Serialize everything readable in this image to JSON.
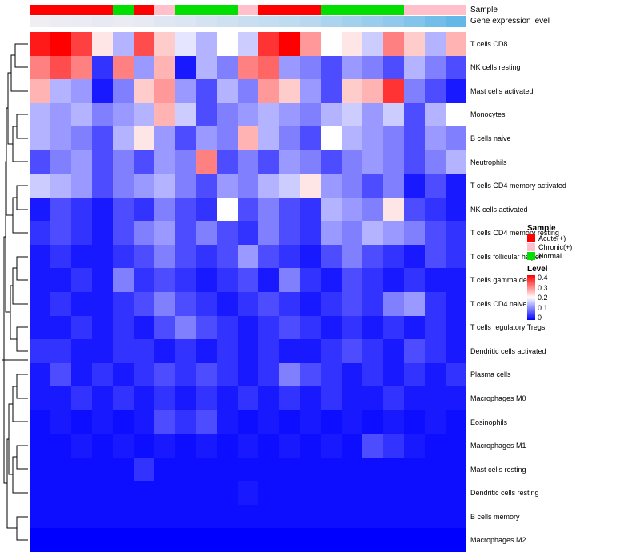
{
  "annotations": {
    "sample_label": "Sample",
    "expression_label": "Gene expression level",
    "sample_colors": {
      "Acute(+)": "#FF0000",
      "Chronic(+)": "#FFC0CB",
      "Normal": "#00E000"
    },
    "column_groups": [
      "Acute(+)",
      "Acute(+)",
      "Acute(+)",
      "Acute(+)",
      "Normal",
      "Acute(+)",
      "Chronic(+)",
      "Normal",
      "Normal",
      "Normal",
      "Chronic(+)",
      "Acute(+)",
      "Acute(+)",
      "Acute(+)",
      "Normal",
      "Normal",
      "Normal",
      "Normal",
      "Chronic(+)",
      "Chronic(+)",
      "Chronic(+)"
    ],
    "expression_values": [
      0.05,
      0.07,
      0.09,
      0.11,
      0.08,
      0.1,
      0.15,
      0.18,
      0.22,
      0.26,
      0.3,
      0.33,
      0.36,
      0.4,
      0.48,
      0.54,
      0.6,
      0.66,
      0.75,
      0.85,
      0.95
    ],
    "expression_scale": {
      "low": "#F8F0F4",
      "high": "#5BB5E7"
    }
  },
  "legend": {
    "sample_title": "Sample",
    "sample_items": [
      {
        "label": "Acute(+)",
        "color": "#FF0000"
      },
      {
        "label": "Chronic(+)",
        "color": "#FFC0CB"
      },
      {
        "label": "Normal",
        "color": "#00E000"
      }
    ],
    "level_title": "Level",
    "level_ticks": [
      "0.4",
      "0.3",
      "0.2",
      "0.1",
      "0"
    ]
  },
  "chart_data": {
    "type": "heatmap",
    "title": "",
    "columns": 21,
    "rows": [
      "T cells CD8",
      "NK cells resting",
      "Mast cells activated",
      "Monocytes",
      "B cells naive",
      "Neutrophils",
      "T cells CD4 memory activated",
      "NK cells activated",
      "T cells CD4 memory resting",
      "T cells follicular helper",
      "T cells gamma delta",
      "T cells CD4 naive",
      "T cells regulatory  Tregs",
      "Dendritic cells activated",
      "Plasma cells",
      "Macrophages M0",
      "Eosinophils",
      "Macrophages M1",
      "Mast cells resting",
      "Dendritic cells resting",
      "B cells memory",
      "Macrophages M2"
    ],
    "values": [
      [
        0.38,
        0.4,
        0.35,
        0.22,
        0.14,
        0.34,
        0.24,
        0.18,
        0.14,
        0.2,
        0.16,
        0.36,
        0.4,
        0.28,
        0.2,
        0.22,
        0.16,
        0.3,
        0.24,
        0.14,
        0.26
      ],
      [
        0.3,
        0.34,
        0.3,
        0.04,
        0.3,
        0.12,
        0.26,
        0.02,
        0.14,
        0.1,
        0.3,
        0.32,
        0.12,
        0.1,
        0.06,
        0.12,
        0.1,
        0.06,
        0.14,
        0.1,
        0.06
      ],
      [
        0.26,
        0.14,
        0.12,
        0.02,
        0.1,
        0.24,
        0.28,
        0.12,
        0.06,
        0.14,
        0.1,
        0.28,
        0.24,
        0.12,
        0.06,
        0.24,
        0.26,
        0.36,
        0.1,
        0.06,
        0.02
      ],
      [
        0.14,
        0.12,
        0.14,
        0.1,
        0.12,
        0.14,
        0.26,
        0.16,
        0.06,
        0.1,
        0.12,
        0.14,
        0.12,
        0.1,
        0.14,
        0.16,
        0.12,
        0.16,
        0.06,
        0.14,
        0.2
      ],
      [
        0.14,
        0.12,
        0.1,
        0.06,
        0.14,
        0.22,
        0.12,
        0.06,
        0.12,
        0.1,
        0.26,
        0.14,
        0.1,
        0.06,
        0.2,
        0.14,
        0.12,
        0.1,
        0.06,
        0.12,
        0.1
      ],
      [
        0.06,
        0.1,
        0.12,
        0.06,
        0.1,
        0.06,
        0.12,
        0.1,
        0.3,
        0.06,
        0.1,
        0.06,
        0.12,
        0.1,
        0.06,
        0.1,
        0.12,
        0.1,
        0.06,
        0.1,
        0.14
      ],
      [
        0.16,
        0.14,
        0.12,
        0.06,
        0.1,
        0.12,
        0.14,
        0.1,
        0.06,
        0.12,
        0.1,
        0.14,
        0.16,
        0.22,
        0.12,
        0.1,
        0.06,
        0.1,
        0.02,
        0.06,
        0.02
      ],
      [
        0.02,
        0.06,
        0.04,
        0.02,
        0.06,
        0.04,
        0.1,
        0.06,
        0.04,
        0.2,
        0.06,
        0.1,
        0.06,
        0.04,
        0.14,
        0.12,
        0.1,
        0.22,
        0.06,
        0.04,
        0.02
      ],
      [
        0.04,
        0.06,
        0.04,
        0.02,
        0.06,
        0.1,
        0.12,
        0.06,
        0.1,
        0.06,
        0.04,
        0.1,
        0.06,
        0.04,
        0.12,
        0.1,
        0.14,
        0.12,
        0.1,
        0.06,
        0.04
      ],
      [
        0.02,
        0.04,
        0.02,
        0.02,
        0.04,
        0.06,
        0.1,
        0.06,
        0.04,
        0.06,
        0.12,
        0.06,
        0.04,
        0.02,
        0.06,
        0.1,
        0.06,
        0.04,
        0.02,
        0.06,
        0.04
      ],
      [
        0.02,
        0.02,
        0.04,
        0.02,
        0.1,
        0.04,
        0.06,
        0.04,
        0.02,
        0.04,
        0.06,
        0.02,
        0.1,
        0.04,
        0.02,
        0.06,
        0.04,
        0.02,
        0.04,
        0.02,
        0.02
      ],
      [
        0.02,
        0.04,
        0.02,
        0.02,
        0.04,
        0.06,
        0.1,
        0.06,
        0.04,
        0.02,
        0.04,
        0.06,
        0.04,
        0.02,
        0.04,
        0.06,
        0.04,
        0.1,
        0.12,
        0.04,
        0.02
      ],
      [
        0.02,
        0.02,
        0.04,
        0.02,
        0.04,
        0.02,
        0.06,
        0.1,
        0.06,
        0.04,
        0.02,
        0.04,
        0.06,
        0.04,
        0.02,
        0.04,
        0.02,
        0.04,
        0.02,
        0.04,
        0.02
      ],
      [
        0.04,
        0.04,
        0.02,
        0.02,
        0.04,
        0.04,
        0.02,
        0.04,
        0.02,
        0.04,
        0.02,
        0.04,
        0.02,
        0.02,
        0.04,
        0.06,
        0.04,
        0.02,
        0.06,
        0.04,
        0.02
      ],
      [
        0.02,
        0.06,
        0.02,
        0.04,
        0.02,
        0.04,
        0.06,
        0.04,
        0.06,
        0.04,
        0.02,
        0.04,
        0.1,
        0.06,
        0.04,
        0.02,
        0.04,
        0.02,
        0.04,
        0.02,
        0.04
      ],
      [
        0.02,
        0.02,
        0.04,
        0.02,
        0.04,
        0.02,
        0.04,
        0.02,
        0.04,
        0.02,
        0.04,
        0.02,
        0.04,
        0.02,
        0.04,
        0.02,
        0.02,
        0.04,
        0.02,
        0.02,
        0.02
      ],
      [
        0.01,
        0.02,
        0.01,
        0.02,
        0.01,
        0.02,
        0.06,
        0.04,
        0.06,
        0.02,
        0.01,
        0.02,
        0.01,
        0.02,
        0.01,
        0.02,
        0.01,
        0.02,
        0.01,
        0.02,
        0.01
      ],
      [
        0.01,
        0.01,
        0.02,
        0.01,
        0.02,
        0.01,
        0.02,
        0.01,
        0.02,
        0.01,
        0.02,
        0.01,
        0.02,
        0.01,
        0.02,
        0.01,
        0.06,
        0.04,
        0.02,
        0.01,
        0.01
      ],
      [
        0.01,
        0.01,
        0.01,
        0.01,
        0.01,
        0.04,
        0.01,
        0.01,
        0.01,
        0.01,
        0.01,
        0.01,
        0.01,
        0.01,
        0.01,
        0.01,
        0.01,
        0.01,
        0.01,
        0.01,
        0.01
      ],
      [
        0.01,
        0.01,
        0.01,
        0.01,
        0.01,
        0.01,
        0.01,
        0.01,
        0.01,
        0.01,
        0.02,
        0.01,
        0.01,
        0.01,
        0.01,
        0.01,
        0.01,
        0.01,
        0.01,
        0.01,
        0.01
      ],
      [
        0.01,
        0.01,
        0.01,
        0.01,
        0.01,
        0.01,
        0.01,
        0.01,
        0.01,
        0.01,
        0.01,
        0.01,
        0.01,
        0.01,
        0.01,
        0.01,
        0.01,
        0.01,
        0.01,
        0.01,
        0.01
      ],
      [
        0.0,
        0.0,
        0.0,
        0.0,
        0.0,
        0.0,
        0.0,
        0.0,
        0.0,
        0.0,
        0.0,
        0.0,
        0.0,
        0.0,
        0.0,
        0.0,
        0.0,
        0.0,
        0.0,
        0.0,
        0.0
      ]
    ],
    "color_scale": {
      "min": 0,
      "mid": 0.2,
      "max": 0.4,
      "min_color": "#0000FF",
      "mid_color": "#FFFFFF",
      "max_color": "#FF0000"
    },
    "legend_position": "right",
    "grid": false
  }
}
